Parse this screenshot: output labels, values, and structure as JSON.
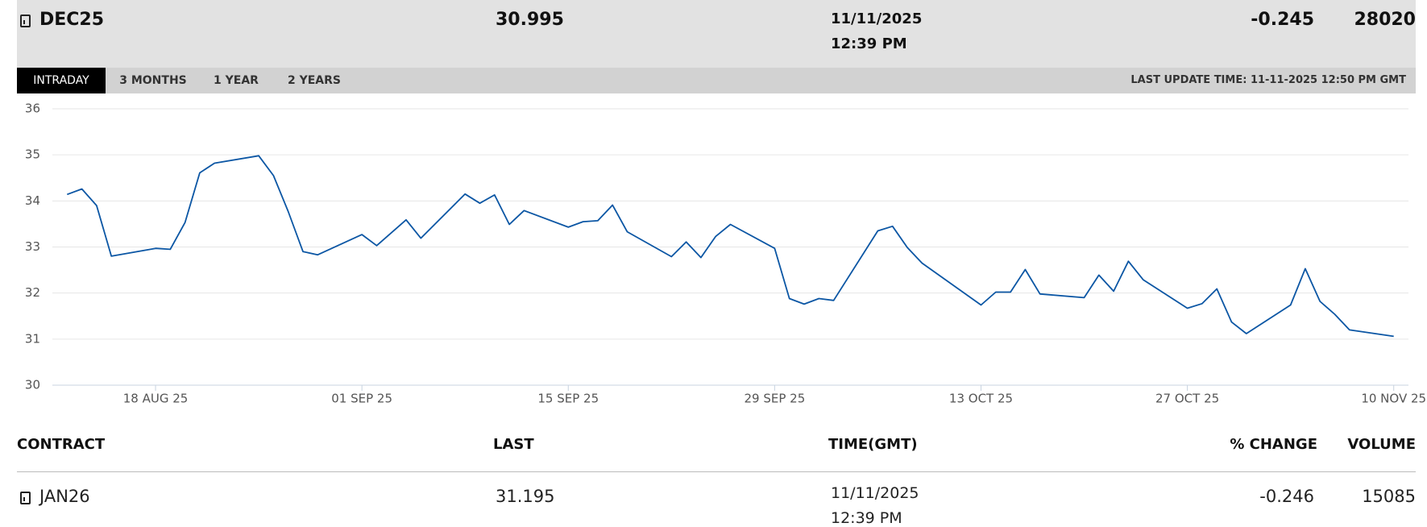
{
  "header": {
    "contract": "DEC25",
    "last": "30.995",
    "date": "11/11/2025",
    "time": "12:39 PM",
    "change": "-0.245",
    "volume": "28020"
  },
  "tabs": [
    "INTRADAY",
    "3 MONTHS",
    "1 YEAR",
    "2 YEARS"
  ],
  "last_update": "LAST UPDATE TIME: 11-11-2025 12:50 PM GMT",
  "chart_data": {
    "type": "line",
    "x": [
      "2025-08-12",
      "2025-08-13",
      "2025-08-14",
      "2025-08-15",
      "2025-08-18",
      "2025-08-19",
      "2025-08-20",
      "2025-08-21",
      "2025-08-22",
      "2025-08-25",
      "2025-08-26",
      "2025-08-27",
      "2025-08-28",
      "2025-08-29",
      "2025-09-01",
      "2025-09-02",
      "2025-09-04",
      "2025-09-05",
      "2025-09-08",
      "2025-09-09",
      "2025-09-10",
      "2025-09-11",
      "2025-09-12",
      "2025-09-15",
      "2025-09-16",
      "2025-09-17",
      "2025-09-18",
      "2025-09-19",
      "2025-09-22",
      "2025-09-23",
      "2025-09-24",
      "2025-09-25",
      "2025-09-26",
      "2025-09-29",
      "2025-09-30",
      "2025-10-01",
      "2025-10-02",
      "2025-10-03",
      "2025-10-06",
      "2025-10-07",
      "2025-10-08",
      "2025-10-09",
      "2025-10-13",
      "2025-10-14",
      "2025-10-15",
      "2025-10-16",
      "2025-10-17",
      "2025-10-20",
      "2025-10-21",
      "2025-10-22",
      "2025-10-23",
      "2025-10-24",
      "2025-10-27",
      "2025-10-28",
      "2025-10-29",
      "2025-10-30",
      "2025-10-31",
      "2025-11-03",
      "2025-11-04",
      "2025-11-05",
      "2025-11-06",
      "2025-11-07",
      "2025-11-10"
    ],
    "values": [
      34.14,
      34.26,
      33.9,
      32.8,
      32.97,
      32.95,
      33.53,
      34.61,
      34.82,
      34.98,
      34.55,
      33.77,
      32.9,
      32.83,
      33.27,
      33.03,
      33.59,
      33.19,
      34.15,
      33.95,
      34.13,
      33.49,
      33.79,
      33.43,
      33.55,
      33.57,
      33.91,
      33.33,
      32.79,
      33.11,
      32.77,
      33.23,
      33.49,
      32.97,
      31.88,
      31.76,
      31.88,
      31.84,
      33.35,
      33.45,
      32.99,
      32.65,
      31.74,
      32.02,
      32.02,
      32.51,
      31.98,
      31.9,
      32.39,
      32.04,
      32.69,
      32.29,
      31.67,
      31.77,
      32.09,
      31.37,
      31.12,
      31.74,
      32.53,
      31.82,
      31.54,
      31.2,
      31.06
    ],
    "color": "#0b56a4",
    "xlim": [
      "2025-08-11",
      "2025-11-11"
    ],
    "xticks": [
      {
        "value": "2025-08-18",
        "label": "18 AUG 25"
      },
      {
        "value": "2025-09-01",
        "label": "01 SEP 25"
      },
      {
        "value": "2025-09-15",
        "label": "15 SEP 25"
      },
      {
        "value": "2025-09-29",
        "label": "29 SEP 25"
      },
      {
        "value": "2025-10-13",
        "label": "13 OCT 25"
      },
      {
        "value": "2025-10-27",
        "label": "27 OCT 25"
      },
      {
        "value": "2025-11-10",
        "label": "10 NOV 25"
      }
    ],
    "ylim": [
      30,
      36
    ],
    "yticks": [
      30,
      31,
      32,
      33,
      34,
      35,
      36
    ],
    "grid": true
  },
  "table": {
    "columns": [
      "CONTRACT",
      "LAST",
      "TIME(GMT)",
      "% CHANGE",
      "VOLUME"
    ],
    "rows": [
      {
        "contract": "JAN26",
        "last": "31.195",
        "date": "11/11/2025",
        "time": "12:39 PM",
        "change": "-0.246",
        "volume": "15085"
      }
    ]
  }
}
